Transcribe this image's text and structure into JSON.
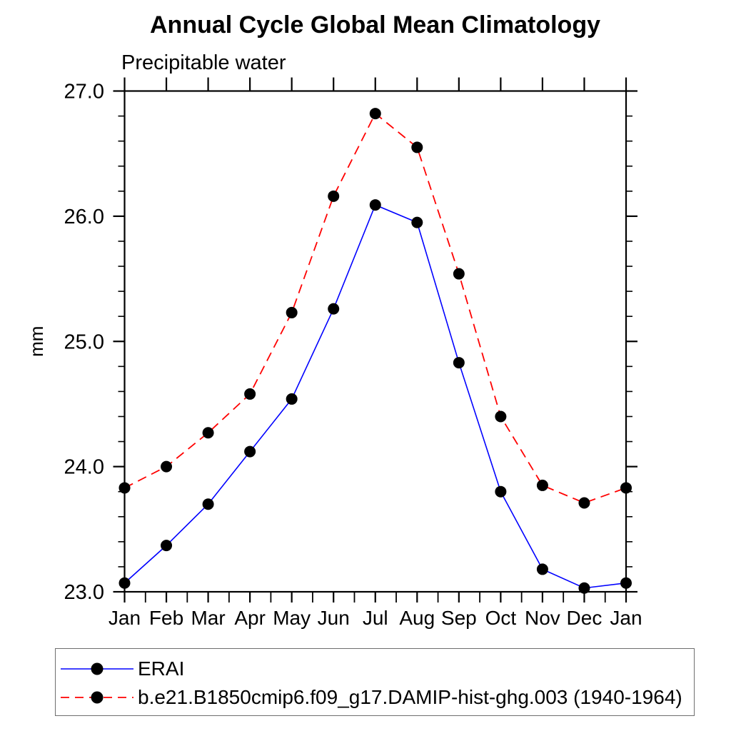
{
  "title": "Annual Cycle Global Mean Climatology",
  "subtitle": "Precipitable water",
  "chart_data": {
    "type": "line",
    "title": "Annual Cycle Global Mean Climatology",
    "subtitle": "Precipitable water",
    "ylabel": "mm",
    "xlabel": "",
    "categories": [
      "Jan",
      "Feb",
      "Mar",
      "Apr",
      "May",
      "Jun",
      "Jul",
      "Aug",
      "Sep",
      "Oct",
      "Nov",
      "Dec",
      "Jan"
    ],
    "ylim": [
      23.0,
      27.0
    ],
    "y_major_ticks": [
      23.0,
      24.0,
      25.0,
      26.0,
      27.0
    ],
    "y_tick_labels": [
      "23.0",
      "24.0",
      "25.0",
      "26.0",
      "27.0"
    ],
    "y_minor_interval": 0.2,
    "grid": false,
    "legend_position": "bottom",
    "marker": "filled-circle",
    "marker_color": "#000000",
    "series": [
      {
        "name": "ERAI",
        "color": "#0000ff",
        "style": "solid",
        "values": [
          23.07,
          23.37,
          23.7,
          24.12,
          24.54,
          25.26,
          26.09,
          25.95,
          24.83,
          23.8,
          23.18,
          23.03,
          23.07
        ]
      },
      {
        "name": "b.e21.B1850cmip6.f09_g17.DAMIP-hist-ghg.003 (1940-1964)",
        "color": "#ff0000",
        "style": "dashed",
        "values": [
          23.83,
          24.0,
          24.27,
          24.58,
          25.23,
          26.16,
          26.82,
          26.55,
          25.54,
          24.4,
          23.85,
          23.71,
          23.83
        ]
      }
    ]
  }
}
